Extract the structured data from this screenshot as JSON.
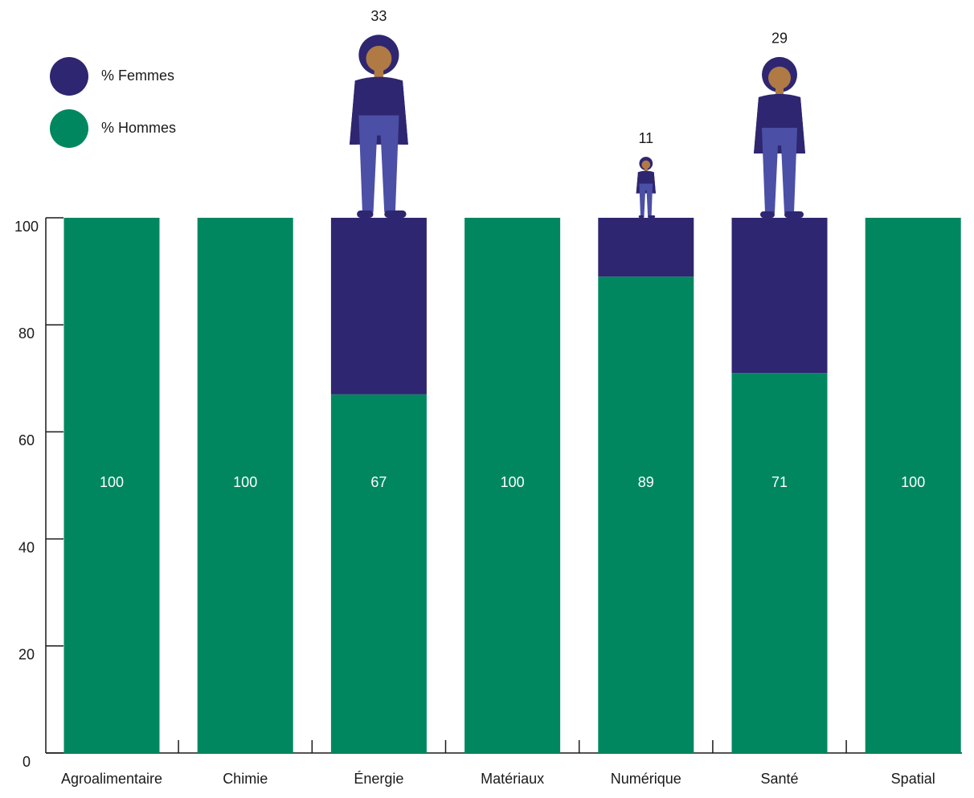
{
  "chart_data": {
    "type": "bar",
    "stacked": true,
    "categories": [
      "Agroalimentaire",
      "Chimie",
      "Énergie",
      "Matériaux",
      "Numérique",
      "Santé",
      "Spatial"
    ],
    "series": [
      {
        "name": "% Hommes",
        "color": "#00875f",
        "values": [
          100,
          100,
          67,
          100,
          89,
          71,
          100
        ]
      },
      {
        "name": "% Femmes",
        "color": "#2e2670",
        "values": [
          0,
          0,
          33,
          0,
          11,
          29,
          0
        ]
      }
    ],
    "ylim": [
      0,
      100
    ],
    "yticks": [
      0,
      20,
      40,
      60,
      80,
      100
    ],
    "grid": false,
    "legend": "top-left"
  }
}
